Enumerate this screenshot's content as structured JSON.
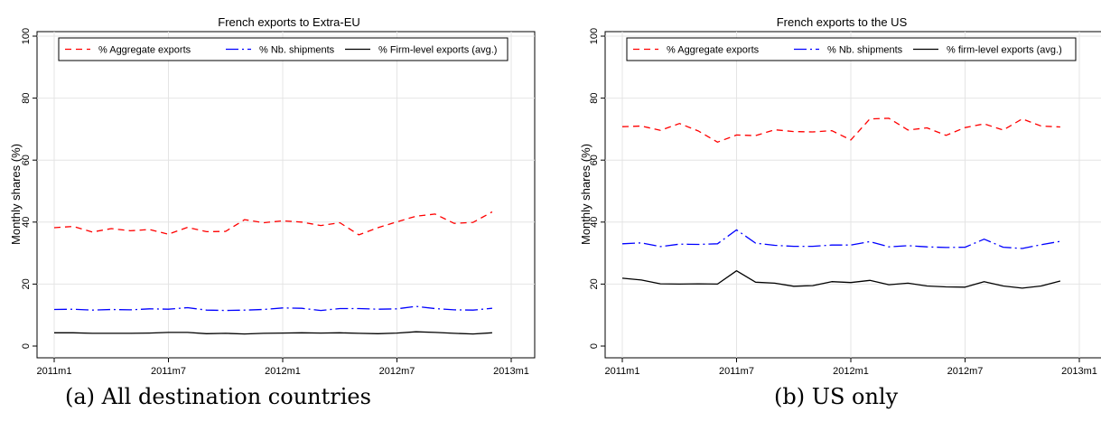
{
  "captions": [
    "(a) All destination countries",
    "(b) US only"
  ],
  "colors": {
    "aggregate": "#ff0000",
    "shipments": "#0000ff",
    "firm": "#000000",
    "grid": "#e4e4e4",
    "frame": "#000000"
  },
  "chart_data": [
    {
      "type": "line",
      "title": "French exports to Extra-EU",
      "xlabel": "",
      "ylabel": "Monthly shares (%)",
      "ylim": [
        0,
        100
      ],
      "yticks": [
        0,
        20,
        40,
        60,
        80,
        100
      ],
      "xlim": [
        0,
        24
      ],
      "xticks": [
        0,
        6,
        12,
        18,
        24
      ],
      "xtick_labels": [
        "2011m1",
        "2011m7",
        "2012m1",
        "2012m7",
        "2013m1"
      ],
      "grid": true,
      "legend_position": "top",
      "x": [
        0,
        1,
        2,
        3,
        4,
        5,
        6,
        7,
        8,
        9,
        10,
        11,
        12,
        13,
        14,
        15,
        16,
        17,
        18,
        19,
        20,
        21,
        22,
        23
      ],
      "series": [
        {
          "name": "% Aggregate exports",
          "style": "dash",
          "values": [
            38.2,
            38.6,
            36.8,
            37.9,
            37.2,
            37.6,
            36.1,
            38.3,
            36.9,
            37.0,
            40.8,
            39.8,
            40.4,
            40.0,
            38.9,
            39.8,
            35.9,
            38.2,
            40.1,
            41.9,
            42.6,
            39.6,
            39.9,
            43.3
          ]
        },
        {
          "name": "% Nb. shipments",
          "style": "dashdot",
          "values": [
            11.8,
            11.9,
            11.6,
            11.8,
            11.7,
            12.0,
            11.9,
            12.4,
            11.6,
            11.5,
            11.6,
            11.8,
            12.3,
            12.2,
            11.5,
            12.1,
            12.1,
            11.9,
            12.0,
            12.8,
            12.1,
            11.7,
            11.6,
            12.2
          ]
        },
        {
          "name": "% Firm-level exports (avg.)",
          "style": "solid",
          "values": [
            4.3,
            4.3,
            4.1,
            4.1,
            4.1,
            4.2,
            4.4,
            4.4,
            4.0,
            4.1,
            3.9,
            4.1,
            4.2,
            4.3,
            4.2,
            4.3,
            4.1,
            4.0,
            4.2,
            4.6,
            4.4,
            4.1,
            3.9,
            4.3
          ]
        }
      ]
    },
    {
      "type": "line",
      "title": "French exports to the US",
      "xlabel": "",
      "ylabel": "Monthly shares (%)",
      "ylim": [
        0,
        100
      ],
      "yticks": [
        0,
        20,
        40,
        60,
        80,
        100
      ],
      "xlim": [
        0,
        24
      ],
      "xticks": [
        0,
        6,
        12,
        18,
        24
      ],
      "xtick_labels": [
        "2011m1",
        "2011m7",
        "2012m1",
        "2012m7",
        "2013m1"
      ],
      "grid": true,
      "legend_position": "top",
      "x": [
        0,
        1,
        2,
        3,
        4,
        5,
        6,
        7,
        8,
        9,
        10,
        11,
        12,
        13,
        14,
        15,
        16,
        17,
        18,
        19,
        20,
        21,
        22,
        23
      ],
      "series": [
        {
          "name": "% Aggregate exports",
          "style": "dash",
          "values": [
            70.8,
            71.0,
            69.6,
            71.8,
            69.4,
            65.8,
            68.1,
            67.9,
            69.8,
            69.2,
            69.1,
            69.5,
            66.5,
            73.3,
            73.5,
            69.7,
            70.4,
            68.0,
            70.5,
            71.7,
            69.7,
            73.3,
            71.0,
            70.7
          ]
        },
        {
          "name": "% Nb. shipments",
          "style": "dashdot",
          "values": [
            33.0,
            33.3,
            32.1,
            32.9,
            32.8,
            33.0,
            37.5,
            33.2,
            32.5,
            32.2,
            32.2,
            32.6,
            32.6,
            33.7,
            32.0,
            32.4,
            32.0,
            31.8,
            31.9,
            34.5,
            31.9,
            31.5,
            32.7,
            33.8
          ]
        },
        {
          "name": "% firm-level exports (avg.)",
          "style": "solid",
          "values": [
            21.9,
            21.3,
            20.1,
            20.0,
            20.1,
            20.0,
            24.3,
            20.6,
            20.3,
            19.3,
            19.5,
            20.8,
            20.5,
            21.2,
            19.8,
            20.3,
            19.4,
            19.1,
            19.0,
            20.8,
            19.4,
            18.7,
            19.4,
            21.0
          ]
        }
      ]
    }
  ]
}
